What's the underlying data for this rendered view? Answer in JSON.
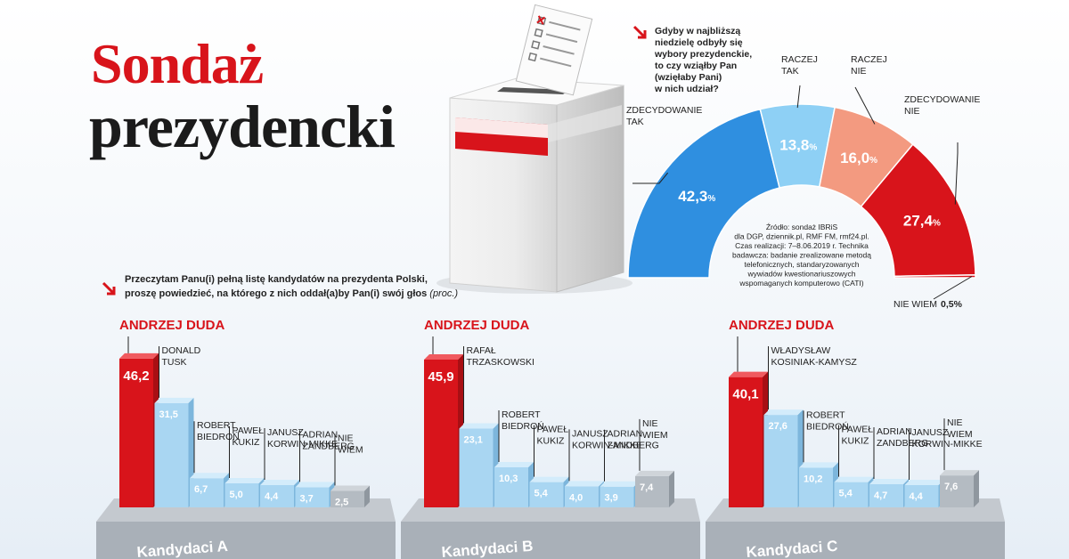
{
  "title": {
    "line1": "Sondaż",
    "line2": "prezydencki"
  },
  "colors": {
    "red": "#d8141b",
    "blue_dark": "#2f8fe0",
    "blue_light": "#8ed0f5",
    "salmon": "#f39a80",
    "bar_blue": "#a9d6f2",
    "bar_gray": "#b4bbc2",
    "platform": "#b0b6bd"
  },
  "gauge": {
    "question": "Gdyby w najbliższą niedzielę odbyły się wybory prezydenckie, to czy wziąłby Pan (wzięłaby Pani) w nich udział?",
    "question_lines": [
      "Gdyby w najbliższą",
      "niedzielę odbyły się",
      "wybory prezydenckie,",
      "to czy wziąłby Pan",
      "(wzięłaby Pani)",
      "w nich udział?"
    ],
    "source_lines": [
      "Źródło: sondaż IBRiS",
      "dla DGP, dziennik.pl, RMF FM, rmf24.pl.",
      "Czas realizacji: 7–8.06.2019 r. Technika",
      "badawcza: badanie zrealizowane metodą",
      "telefonicznych, standaryzowanych",
      "wywiadów kwestionariuszowych",
      "wspomaganych komputerowo (CATI)"
    ]
  },
  "bars_question": {
    "line1": "Przeczytam Panu(i) pełną listę kandydatów na prezydenta Polski,",
    "line2": "proszę powiedzieć, na którego z nich oddał(a)by Pan(i) swój głos",
    "suffix": "(proc.)"
  },
  "chart_data": [
    {
      "type": "pie",
      "subtype": "half-donut",
      "categories": [
        "ZDECYDOWANIE TAK",
        "RACZEJ TAK",
        "RACZEJ NIE",
        "ZDECYDOWANIE NIE",
        "NIE WIEM"
      ],
      "category_lines": [
        [
          "ZDECYDOWANIE",
          "TAK"
        ],
        [
          "RACZEJ",
          "TAK"
        ],
        [
          "RACZEJ",
          "NIE"
        ],
        [
          "ZDECYDOWANIE",
          "NIE"
        ],
        [
          "NIE WIEM"
        ]
      ],
      "values": [
        42.3,
        13.8,
        16.0,
        27.4,
        0.5
      ],
      "value_labels": [
        "42,3",
        "13,8",
        "16,0",
        "27,4",
        "0,5"
      ],
      "unit": "%",
      "colors": [
        "#2f8fe0",
        "#8ed0f5",
        "#f39a80",
        "#d8141b",
        "#d8141b"
      ]
    },
    {
      "type": "bar",
      "title": "Kandydaci A",
      "categories": [
        "ANDRZEJ DUDA",
        "DONALD TUSK",
        "ROBERT BIEDROŃ",
        "PAWEŁ KUKIZ",
        "JANUSZ KORWIN-MIKKE",
        "ADRIAN ZANDBERG",
        "NIE WIEM"
      ],
      "category_lines": [
        [
          "ANDRZEJ DUDA"
        ],
        [
          "DONALD",
          "TUSK"
        ],
        [
          "ROBERT",
          "BIEDROŃ"
        ],
        [
          "PAWEŁ",
          "KUKIZ"
        ],
        [
          "JANUSZ",
          "KORWIN-MIKKE"
        ],
        [
          "ADRIAN",
          "ZANDBERG"
        ],
        [
          "NIE",
          "WIEM"
        ]
      ],
      "values": [
        46.2,
        31.5,
        6.7,
        5.0,
        4.4,
        3.7,
        2.5
      ],
      "value_labels": [
        "46,2",
        "31,5",
        "6,7",
        "5,0",
        "4,4",
        "3,7",
        "2,5"
      ],
      "ylim": [
        0,
        50
      ]
    },
    {
      "type": "bar",
      "title": "Kandydaci B",
      "categories": [
        "ANDRZEJ DUDA",
        "RAFAŁ TRZASKOWSKI",
        "ROBERT BIEDROŃ",
        "PAWEŁ KUKIZ",
        "JANUSZ KORWIN-MIKKE",
        "ADRIAN ZANDBERG",
        "NIE WIEM"
      ],
      "category_lines": [
        [
          "ANDRZEJ DUDA"
        ],
        [
          "RAFAŁ",
          "TRZASKOWSKI"
        ],
        [
          "ROBERT",
          "BIEDROŃ"
        ],
        [
          "PAWEŁ",
          "KUKIZ"
        ],
        [
          "JANUSZ",
          "KORWIN-MIKKE"
        ],
        [
          "ADRIAN",
          "ZANDBERG"
        ],
        [
          "NIE",
          "WIEM"
        ]
      ],
      "values": [
        45.9,
        23.1,
        10.3,
        5.4,
        4.0,
        3.9,
        7.4
      ],
      "value_labels": [
        "45,9",
        "23,1",
        "10,3",
        "5,4",
        "4,0",
        "3,9",
        "7,4"
      ],
      "ylim": [
        0,
        50
      ]
    },
    {
      "type": "bar",
      "title": "Kandydaci C",
      "categories": [
        "ANDRZEJ DUDA",
        "WŁADYSŁAW KOSINIAK-KAMYSZ",
        "ROBERT BIEDROŃ",
        "PAWEŁ KUKIZ",
        "ADRIAN ZANDBERG",
        "JANUSZ KORWIN-MIKKE",
        "NIE WIEM"
      ],
      "category_lines": [
        [
          "ANDRZEJ DUDA"
        ],
        [
          "WŁADYSŁAW",
          "KOSINIAK-KAMYSZ"
        ],
        [
          "ROBERT",
          "BIEDROŃ"
        ],
        [
          "PAWEŁ",
          "KUKIZ"
        ],
        [
          "ADRIAN",
          "ZANDBERG"
        ],
        [
          "JANUSZ",
          "KORWIN-MIKKE"
        ],
        [
          "NIE",
          "WIEM"
        ]
      ],
      "values": [
        40.1,
        27.6,
        10.2,
        5.4,
        4.7,
        4.4,
        7.6
      ],
      "value_labels": [
        "40,1",
        "27,6",
        "10,2",
        "5,4",
        "4,7",
        "4,4",
        "7,6"
      ],
      "ylim": [
        0,
        50
      ]
    }
  ]
}
